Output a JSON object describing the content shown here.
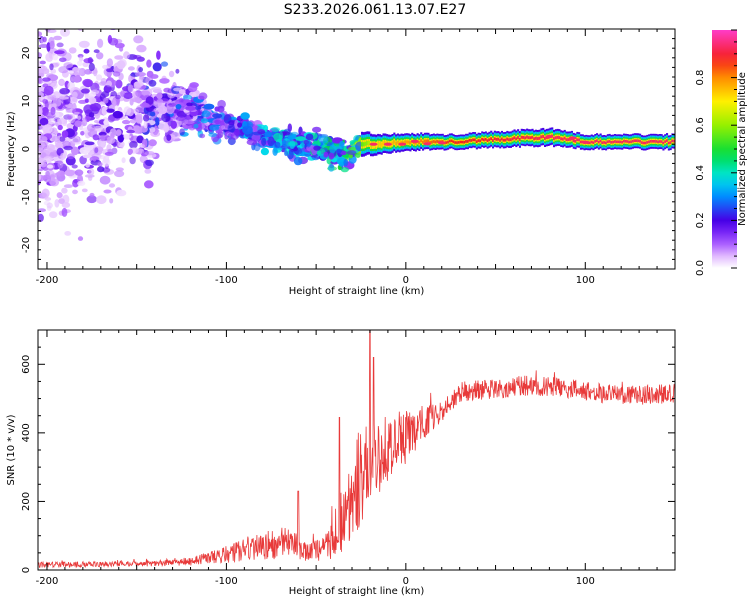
{
  "title": "S233.2026.061.13.07.E27",
  "chart_data": [
    {
      "type": "heatmap",
      "name": "spectrogram",
      "xlabel": "Height of straight line (km)",
      "ylabel": "Frequency (Hz)",
      "xlim": [
        -205,
        150
      ],
      "ylim": [
        -25,
        25
      ],
      "xticks": [
        -200,
        -100,
        0,
        100
      ],
      "yticks": [
        -20,
        -10,
        0,
        10,
        20
      ],
      "colorbar": {
        "label": "Normalized spectral amplitude",
        "range": [
          0,
          1
        ],
        "ticks": [
          0.0,
          0.2,
          0.4,
          0.6,
          0.8
        ]
      },
      "description_of_ridge": [
        {
          "x": -200,
          "f_center": 5,
          "spread": 20,
          "amp": 0.15
        },
        {
          "x": -150,
          "f_center": 8,
          "spread": 12,
          "amp": 0.2
        },
        {
          "x": -120,
          "f_center": 8,
          "spread": 4,
          "amp": 0.3
        },
        {
          "x": -100,
          "f_center": 5,
          "spread": 3,
          "amp": 0.3
        },
        {
          "x": -75,
          "f_center": 2,
          "spread": 2,
          "amp": 0.35
        },
        {
          "x": -50,
          "f_center": 0,
          "spread": 3,
          "amp": 0.4
        },
        {
          "x": -35,
          "f_center": -1,
          "spread": 3,
          "amp": 0.45
        },
        {
          "x": -25,
          "f_center": 1,
          "spread": 1,
          "amp": 0.6
        },
        {
          "x": -15,
          "f_center": 1,
          "spread": 0.8,
          "amp": 0.8
        },
        {
          "x": 0,
          "f_center": 1.5,
          "spread": 0.7,
          "amp": 0.85
        },
        {
          "x": 25,
          "f_center": 1.5,
          "spread": 0.6,
          "amp": 0.95
        },
        {
          "x": 80,
          "f_center": 2.5,
          "spread": 0.7,
          "amp": 1.0
        },
        {
          "x": 100,
          "f_center": 1.5,
          "spread": 0.6,
          "amp": 1.0
        },
        {
          "x": 150,
          "f_center": 1.5,
          "spread": 0.6,
          "amp": 1.0
        }
      ]
    },
    {
      "type": "line",
      "name": "snr",
      "xlabel": "Height of straight line (km)",
      "ylabel": "SNR (10 * v/v)",
      "xlim": [
        -205,
        150
      ],
      "ylim": [
        0,
        700
      ],
      "xticks": [
        -200,
        -100,
        0,
        100
      ],
      "yticks": [
        0,
        200,
        400,
        600
      ],
      "color": "#e83a3a",
      "envelope": {
        "x": [
          -205,
          -150,
          -120,
          -100,
          -80,
          -65,
          -55,
          -45,
          -35,
          -25,
          -20,
          -10,
          0,
          10,
          20,
          30,
          50,
          70,
          90,
          110,
          130,
          150
        ],
        "mean": [
          15,
          18,
          25,
          45,
          70,
          80,
          50,
          60,
          150,
          280,
          320,
          350,
          390,
          430,
          460,
          520,
          530,
          540,
          530,
          515,
          510,
          515
        ],
        "noise": [
          8,
          8,
          12,
          25,
          40,
          50,
          25,
          40,
          100,
          150,
          120,
          100,
          80,
          50,
          30,
          30,
          30,
          30,
          28,
          28,
          28,
          28
        ]
      },
      "spikes": [
        {
          "x": -60,
          "y": 230
        },
        {
          "x": -37,
          "y": 445
        },
        {
          "x": -20,
          "y": 700
        },
        {
          "x": -18,
          "y": 620
        }
      ]
    }
  ]
}
